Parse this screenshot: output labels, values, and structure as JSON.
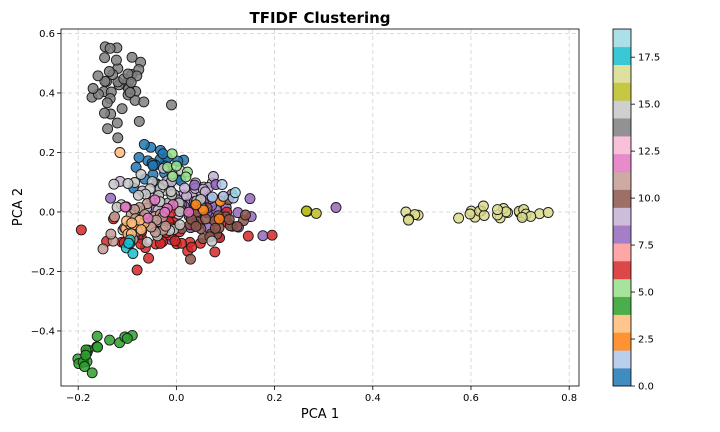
{
  "chart_data": {
    "type": "scatter",
    "title": "TFIDF Clustering",
    "xlabel": "PCA 1",
    "ylabel": "PCA 2",
    "xlim": [
      -0.235,
      0.82
    ],
    "ylim": [
      -0.585,
      0.615
    ],
    "x_ticks": [
      -0.2,
      0.0,
      0.2,
      0.4,
      0.6,
      0.8
    ],
    "x_tick_labels": [
      "−0.2",
      "0.0",
      "0.2",
      "0.4",
      "0.6",
      "0.8"
    ],
    "y_ticks": [
      -0.4,
      -0.2,
      0.0,
      0.2,
      0.4,
      0.6
    ],
    "y_tick_labels": [
      "−0.4",
      "−0.2",
      "0.0",
      "0.2",
      "0.4",
      "0.6"
    ],
    "grid": true,
    "colormap": "tab20",
    "colorbar": {
      "range": [
        0,
        19
      ],
      "ticks": [
        0.0,
        2.5,
        5.0,
        7.5,
        10.0,
        12.5,
        15.0,
        17.5
      ],
      "tick_labels": [
        "0.0",
        "2.5",
        "5.0",
        "7.5",
        "10.0",
        "12.5",
        "15.0",
        "17.5"
      ],
      "colors": [
        "#1f77b4",
        "#aec7e8",
        "#ff7f0e",
        "#ffbb78",
        "#2ca02c",
        "#98df8a",
        "#d62728",
        "#ff9896",
        "#9467bd",
        "#c5b0d5",
        "#8c564b",
        "#c49c94",
        "#e377c2",
        "#f7b6d2",
        "#7f7f7f",
        "#c7c7c7",
        "#bcbd22",
        "#dbdb8d",
        "#17becf",
        "#9edae5"
      ]
    },
    "clusters": [
      {
        "label": 14,
        "n": 40,
        "cx": -0.11,
        "cy": 0.42,
        "sx": 0.03,
        "sy": 0.065
      },
      {
        "label": 4,
        "n": 12,
        "cx": -0.18,
        "cy": -0.49,
        "sx": 0.012,
        "sy": 0.025
      },
      {
        "label": 4,
        "n": 4,
        "cx": -0.12,
        "cy": -0.43,
        "sx": 0.02,
        "sy": 0.01
      },
      {
        "label": 17,
        "n": 22,
        "cx": 0.66,
        "cy": -0.005,
        "sx": 0.055,
        "sy": 0.01
      },
      {
        "label": 17,
        "n": 6,
        "cx": 0.49,
        "cy": -0.015,
        "sx": 0.04,
        "sy": 0.01
      },
      {
        "label": 16,
        "n": 3,
        "cx": 0.26,
        "cy": 0.003,
        "sx": 0.005,
        "sy": 0.003
      },
      {
        "label": 0,
        "n": 25,
        "cx": -0.03,
        "cy": 0.14,
        "sx": 0.03,
        "sy": 0.04
      },
      {
        "label": 9,
        "n": 35,
        "cx": 0.0,
        "cy": 0.06,
        "sx": 0.05,
        "sy": 0.04
      },
      {
        "label": 8,
        "n": 55,
        "cx": 0.04,
        "cy": 0.0,
        "sx": 0.05,
        "sy": 0.04
      },
      {
        "label": 6,
        "n": 45,
        "cx": -0.02,
        "cy": -0.07,
        "sx": 0.06,
        "sy": 0.04
      },
      {
        "label": 10,
        "n": 30,
        "cx": 0.07,
        "cy": -0.04,
        "sx": 0.04,
        "sy": 0.035
      },
      {
        "label": 15,
        "n": 45,
        "cx": -0.04,
        "cy": 0.03,
        "sx": 0.05,
        "sy": 0.05
      },
      {
        "label": 11,
        "n": 25,
        "cx": -0.07,
        "cy": -0.05,
        "sx": 0.04,
        "sy": 0.04
      },
      {
        "label": 3,
        "n": 10,
        "cx": -0.09,
        "cy": -0.04,
        "sx": 0.02,
        "sy": 0.03
      },
      {
        "label": 12,
        "n": 8,
        "cx": -0.02,
        "cy": 0.02,
        "sx": 0.04,
        "sy": 0.04
      },
      {
        "label": 5,
        "n": 6,
        "cx": 0.0,
        "cy": 0.13,
        "sx": 0.02,
        "sy": 0.02
      },
      {
        "label": 18,
        "n": 5,
        "cx": -0.09,
        "cy": -0.11,
        "sx": 0.01,
        "sy": 0.02
      },
      {
        "label": 2,
        "n": 4,
        "cx": 0.06,
        "cy": 0.01,
        "sx": 0.03,
        "sy": 0.02
      },
      {
        "label": 1,
        "n": 4,
        "cx": 0.1,
        "cy": 0.05,
        "sx": 0.03,
        "sy": 0.02
      }
    ],
    "points": [
      {
        "x": -0.145,
        "y": 0.555,
        "label": 14
      },
      {
        "x": -0.135,
        "y": 0.55,
        "label": 14
      },
      {
        "x": -0.01,
        "y": 0.36,
        "label": 14
      },
      {
        "x": -0.14,
        "y": 0.28,
        "label": 14
      },
      {
        "x": -0.115,
        "y": 0.2,
        "label": 3
      },
      {
        "x": 0.195,
        "y": -0.078,
        "label": 6
      },
      {
        "x": 0.325,
        "y": 0.015,
        "label": 8
      },
      {
        "x": 0.285,
        "y": -0.005,
        "label": 16
      },
      {
        "x": 0.15,
        "y": 0.045,
        "label": 8
      },
      {
        "x": 0.12,
        "y": 0.065,
        "label": 19
      },
      {
        "x": -0.08,
        "y": -0.195,
        "label": 6
      },
      {
        "x": -0.105,
        "y": -0.42,
        "label": 4
      },
      {
        "x": -0.1,
        "y": -0.425,
        "label": 4
      }
    ]
  }
}
